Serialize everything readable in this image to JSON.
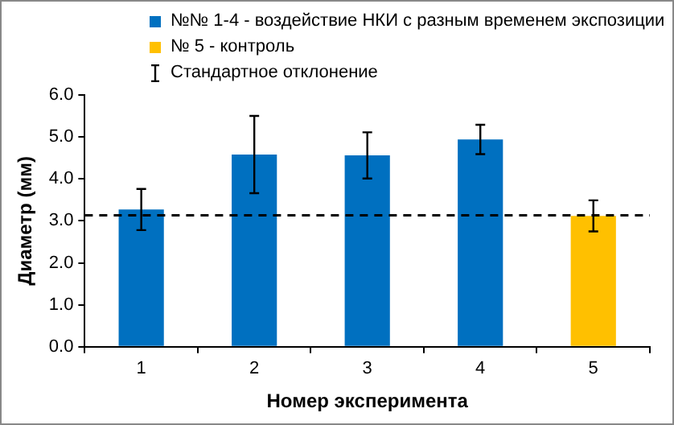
{
  "chart_data": {
    "type": "bar",
    "xlabel": "Номер эксперимента",
    "ylabel": "Диаметр (мм)",
    "categories": [
      "1",
      "2",
      "3",
      "4",
      "5"
    ],
    "series": [
      {
        "name": "№№ 1-4 - воздействие НКИ с разным временем экспозиции",
        "color": "#0070c0",
        "values": [
          3.27,
          4.58,
          4.56,
          4.94,
          null
        ],
        "errors": [
          0.49,
          0.92,
          0.55,
          0.35,
          null
        ]
      },
      {
        "name": "№ 5 - контроль",
        "color": "#ffc000",
        "values": [
          null,
          null,
          null,
          null,
          3.12
        ],
        "errors": [
          null,
          null,
          null,
          null,
          0.37
        ]
      }
    ],
    "ylim": [
      0,
      6
    ],
    "yticks": [
      {
        "value": 0,
        "label": "0.0"
      },
      {
        "value": 1,
        "label": "1.0"
      },
      {
        "value": 2,
        "label": "2.0"
      },
      {
        "value": 3,
        "label": "3.0"
      },
      {
        "value": 4,
        "label": "4.0"
      },
      {
        "value": 5,
        "label": "5.0"
      },
      {
        "value": 6,
        "label": "6.0"
      }
    ],
    "ref_lines": [
      {
        "axis": "y",
        "value": 3.13,
        "color": "#000000",
        "line_style": "dashed"
      }
    ],
    "annotations": [
      "Стандартное отклонение"
    ],
    "legend": "top",
    "grid": false
  }
}
